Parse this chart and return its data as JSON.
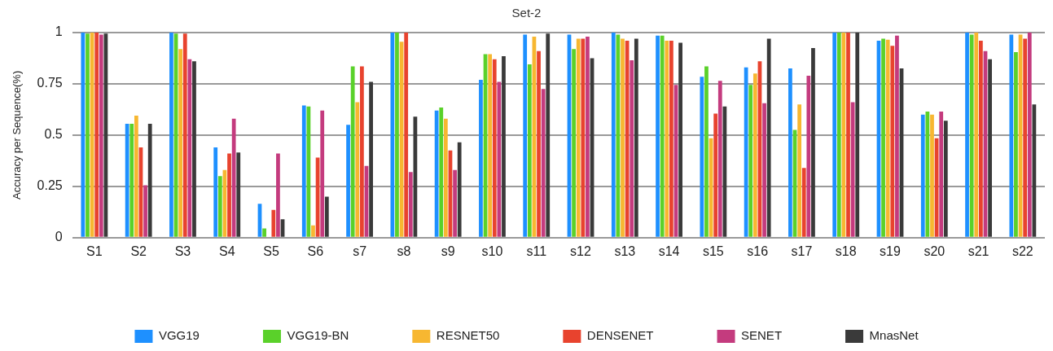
{
  "chart_data": {
    "type": "bar",
    "title": "Set-2",
    "ylabel": "Accuracy per Sequence(%)",
    "categories": [
      "S1",
      "S2",
      "S3",
      "S4",
      "S5",
      "S6",
      "s7",
      "s8",
      "s9",
      "s10",
      "s11",
      "s12",
      "s13",
      "s14",
      "s15",
      "s16",
      "s17",
      "s18",
      "s19",
      "s20",
      "s21",
      "s22"
    ],
    "series": [
      {
        "name": "VGG19",
        "color": "#1e90ff",
        "values": [
          1,
          0.555,
          1,
          0.44,
          0.165,
          0.645,
          0.55,
          1,
          0.62,
          0.77,
          0.99,
          0.99,
          1,
          0.985,
          0.785,
          0.83,
          0.825,
          1,
          0.96,
          0.6,
          1,
          0.99
        ]
      },
      {
        "name": "VGG19-BN",
        "color": "#5ad12a",
        "values": [
          0.995,
          0.555,
          0.995,
          0.3,
          0.045,
          0.64,
          0.835,
          1,
          0.635,
          0.895,
          0.845,
          0.92,
          0.99,
          0.985,
          0.835,
          0.745,
          0.525,
          1,
          0.97,
          0.615,
          0.99,
          0.905
        ]
      },
      {
        "name": "RESNET50",
        "color": "#f7b731",
        "values": [
          1,
          0.595,
          0.92,
          0.33,
          0,
          0.06,
          0.66,
          0.955,
          0.58,
          0.895,
          0.98,
          0.97,
          0.97,
          0.96,
          0.485,
          0.8,
          0.65,
          1,
          0.965,
          0.6,
          1,
          0.99
        ]
      },
      {
        "name": "DENSENET",
        "color": "#e8432e",
        "values": [
          1,
          0.44,
          0.995,
          0.41,
          0.135,
          0.39,
          0.835,
          1,
          0.425,
          0.87,
          0.91,
          0.97,
          0.96,
          0.96,
          0.605,
          0.86,
          0.34,
          1,
          0.935,
          0.485,
          0.96,
          0.97
        ]
      },
      {
        "name": "SENET",
        "color": "#c43b7e",
        "values": [
          0.99,
          0.255,
          0.87,
          0.58,
          0.41,
          0.62,
          0.35,
          0.32,
          0.33,
          0.76,
          0.725,
          0.98,
          0.865,
          0.745,
          0.765,
          0.655,
          0.79,
          0.66,
          0.985,
          0.615,
          0.91,
          1
        ]
      },
      {
        "name": "MnasNet",
        "color": "#3a3a3a",
        "values": [
          0.995,
          0.555,
          0.86,
          0.415,
          0.09,
          0.2,
          0.76,
          0.59,
          0.465,
          0.885,
          0.995,
          0.875,
          0.97,
          0.95,
          0.64,
          0.97,
          0.925,
          1,
          0.825,
          0.57,
          0.87,
          0.65
        ]
      }
    ],
    "ylim": [
      0,
      1
    ],
    "yticks": [
      0,
      0.25,
      0.5,
      0.75,
      1
    ],
    "grid": "y",
    "legend": "bottom"
  }
}
